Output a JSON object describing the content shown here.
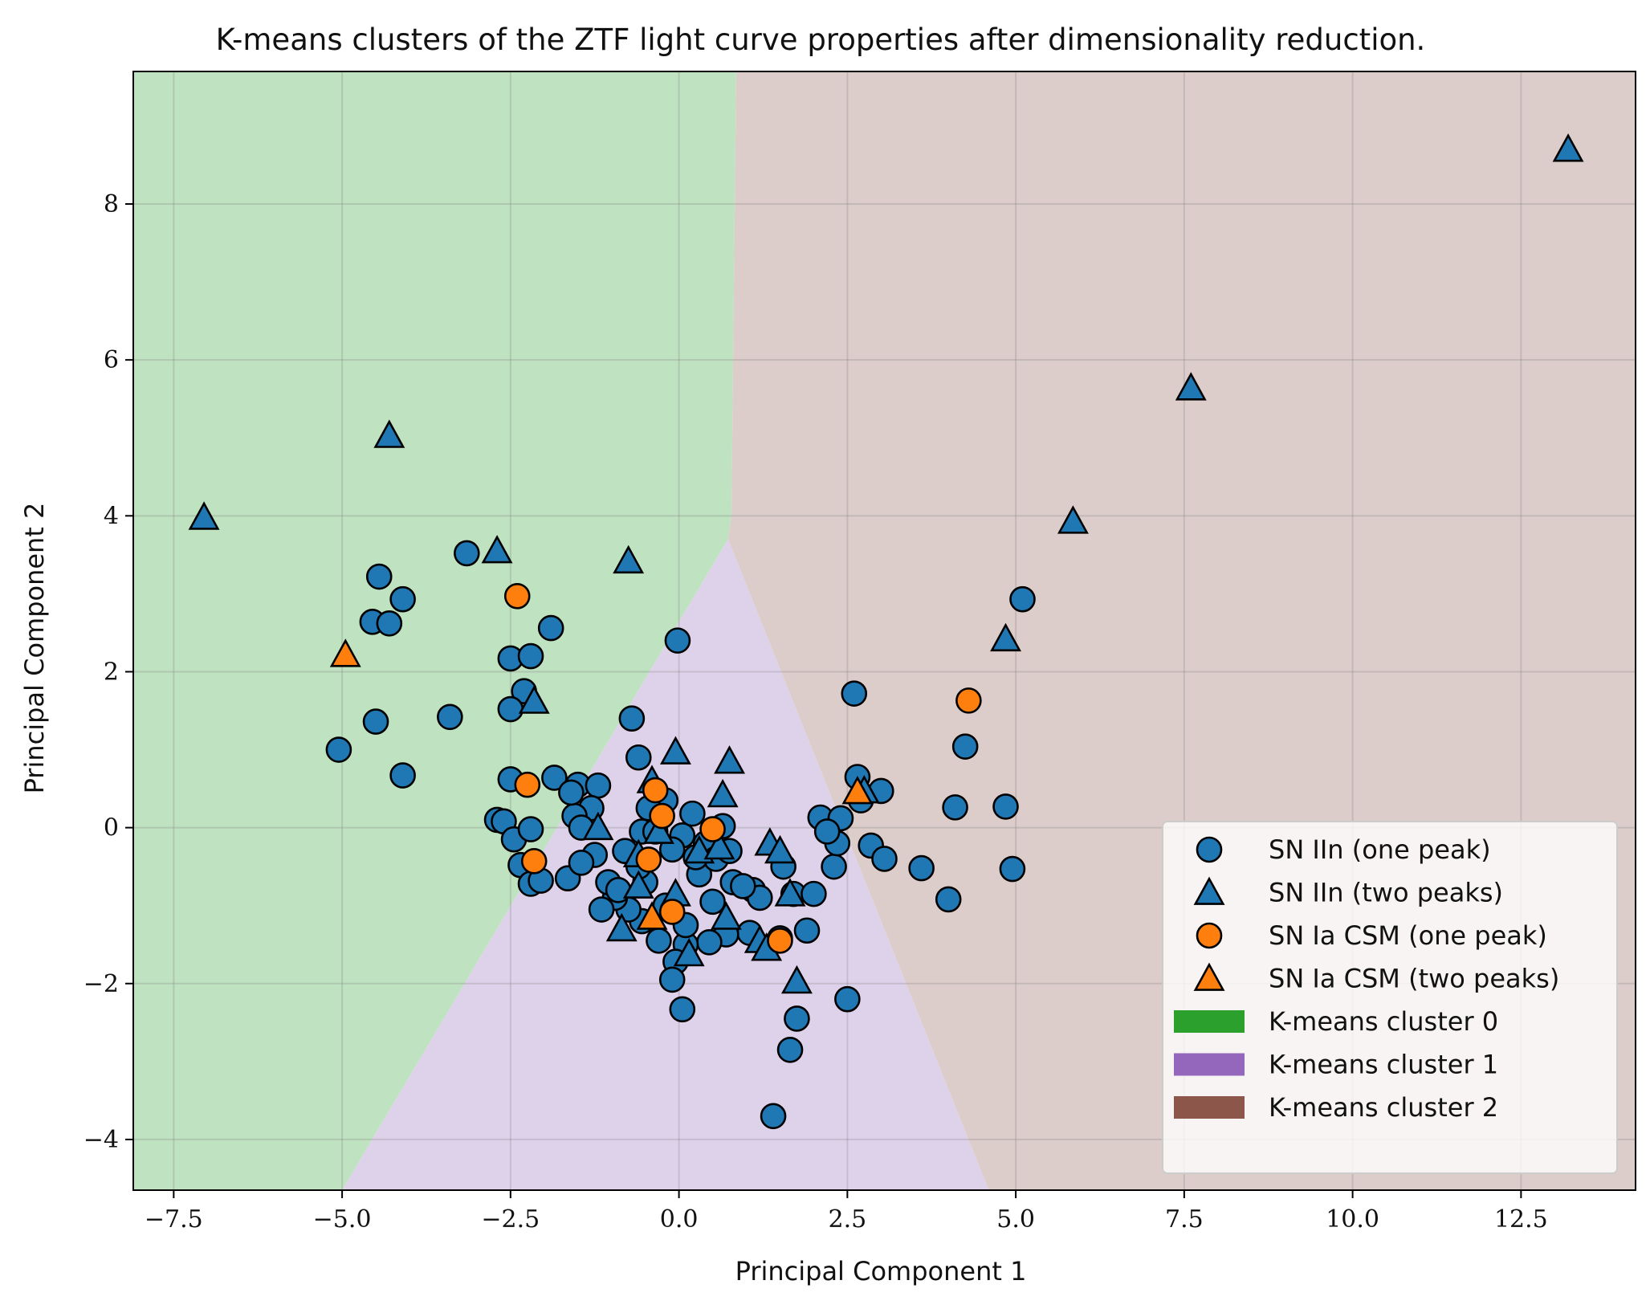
{
  "chart_data": {
    "type": "scatter",
    "title": "K-means clusters of the ZTF light curve properties after dimensionality reduction.",
    "xlabel": "Principal Component 1",
    "ylabel": "Principal Component 2",
    "xlim": [
      -8.1,
      14.2
    ],
    "ylim": [
      -4.65,
      9.7
    ],
    "xticks": [
      -7.5,
      -5.0,
      -2.5,
      0.0,
      2.5,
      5.0,
      7.5,
      10.0,
      12.5
    ],
    "xtick_labels": [
      "−7.5",
      "−5.0",
      "−2.5",
      "0.0",
      "2.5",
      "5.0",
      "7.5",
      "10.0",
      "12.5"
    ],
    "yticks": [
      -4,
      -2,
      0,
      2,
      4,
      6,
      8
    ],
    "ytick_labels": [
      "−4",
      "−2",
      "0",
      "2",
      "4",
      "6",
      "8"
    ],
    "grid": true,
    "legend_position": "bottom-right",
    "regions": [
      {
        "name": "K-means cluster 0",
        "color": "#2ca02c",
        "fill_color": "#bfe2c0",
        "polygon": [
          [
            -8.1,
            9.7
          ],
          [
            0.85,
            9.7
          ],
          [
            0.78,
            4.0
          ],
          [
            0.73,
            3.7
          ],
          [
            -5.0,
            -4.65
          ],
          [
            -8.1,
            -4.65
          ]
        ]
      },
      {
        "name": "K-means cluster 1",
        "color": "#9467bd",
        "fill_color": "#ded2ea",
        "polygon": [
          [
            0.73,
            3.7
          ],
          [
            -5.0,
            -4.65
          ],
          [
            4.6,
            -4.65
          ]
        ]
      },
      {
        "name": "K-means cluster 2",
        "color": "#8c564b",
        "fill_color": "#dccdca",
        "polygon": [
          [
            0.85,
            9.7
          ],
          [
            14.2,
            9.7
          ],
          [
            14.2,
            -4.65
          ],
          [
            4.6,
            -4.65
          ],
          [
            0.73,
            3.7
          ],
          [
            0.78,
            4.0
          ]
        ]
      }
    ],
    "series": [
      {
        "name": "SN IIn (one peak)",
        "marker": "circle",
        "color": "#1f77b4",
        "x": [
          -3.15,
          -4.45,
          -4.1,
          -4.55,
          -4.3,
          -2.5,
          -2.2,
          -1.9,
          -2.3,
          -2.5,
          -3.4,
          -4.5,
          -5.05,
          -4.1,
          -0.02,
          -0.7,
          -0.6,
          2.6,
          2.65,
          2.7,
          3.0,
          4.25,
          4.1,
          4.85,
          4.95,
          5.1,
          2.85,
          3.05,
          3.6,
          4.0,
          -1.85,
          -2.5,
          -1.5,
          -1.2,
          -1.3,
          -2.7,
          -2.6,
          -2.45,
          -2.2,
          -1.65,
          -0.8,
          -0.55,
          -0.35,
          -0.2,
          0.05,
          0.2,
          0.4,
          0.65,
          0.8,
          1.1,
          1.2,
          1.55,
          1.7,
          2.0,
          2.1,
          2.3,
          2.35,
          2.4,
          2.2,
          1.9,
          1.5,
          1.05,
          0.7,
          0.45,
          0.1,
          -0.3,
          -0.55,
          -0.75,
          -0.95,
          -1.05,
          -1.15,
          -1.25,
          -1.45,
          -1.55,
          -0.9,
          -0.5,
          -0.2,
          0.1,
          0.3,
          0.55,
          0.75,
          0.95,
          -0.05,
          -0.1,
          0.05,
          -0.45,
          -0.35,
          2.5,
          1.75,
          1.65,
          1.4,
          -2.35,
          -2.2,
          -2.05,
          -1.6,
          -1.45,
          -0.6,
          -0.1,
          0.25,
          0.5
        ],
        "y": [
          3.52,
          3.22,
          2.93,
          2.64,
          2.62,
          2.17,
          2.2,
          2.56,
          1.75,
          1.52,
          1.42,
          1.36,
          1.0,
          0.67,
          2.4,
          1.4,
          0.9,
          1.72,
          0.65,
          0.35,
          0.47,
          1.04,
          0.26,
          0.27,
          -0.53,
          2.93,
          -0.23,
          -0.4,
          -0.52,
          -0.92,
          0.64,
          0.62,
          0.55,
          0.54,
          0.25,
          0.1,
          0.08,
          -0.15,
          -0.02,
          -0.65,
          -0.3,
          -0.05,
          0.2,
          0.35,
          -0.1,
          0.18,
          -0.2,
          0.02,
          -0.7,
          -0.8,
          -0.9,
          -0.5,
          -0.85,
          -0.85,
          0.13,
          -0.5,
          -0.2,
          0.12,
          -0.05,
          -1.32,
          -1.42,
          -1.35,
          -1.37,
          -1.47,
          -1.5,
          -1.45,
          -1.2,
          -1.05,
          -0.9,
          -0.7,
          -1.05,
          -0.35,
          -0.45,
          0.15,
          -0.8,
          -0.7,
          -1.0,
          -1.25,
          -0.6,
          -0.4,
          -0.3,
          -0.75,
          -1.72,
          -1.95,
          -2.33,
          0.25,
          -0.05,
          -2.2,
          -2.45,
          -2.85,
          -3.7,
          -0.48,
          -0.72,
          -0.68,
          0.45,
          0.0,
          -0.5,
          -0.28,
          -0.38,
          -0.95
        ]
      },
      {
        "name": "SN IIn (two peaks)",
        "marker": "triangle",
        "color": "#1f77b4",
        "x": [
          13.2,
          7.6,
          5.85,
          4.85,
          -4.3,
          -7.05,
          -2.7,
          -0.75,
          -2.15,
          -0.05,
          0.75,
          0.65,
          1.35,
          1.5,
          1.75,
          2.75,
          -0.6,
          -0.3,
          -0.05,
          0.3,
          0.6,
          0.7,
          1.2,
          1.3,
          1.65,
          -0.4,
          -0.6,
          -0.85,
          0.15,
          -1.2
        ],
        "y": [
          8.7,
          5.64,
          3.93,
          2.42,
          5.03,
          3.98,
          3.55,
          3.42,
          1.62,
          0.97,
          0.85,
          0.42,
          -0.2,
          -0.3,
          -1.97,
          0.47,
          -0.35,
          -0.05,
          -0.85,
          -0.3,
          -0.25,
          -1.15,
          -1.45,
          -1.55,
          -0.85,
          0.6,
          -0.75,
          -1.3,
          -1.62,
          0.0
        ]
      },
      {
        "name": "SN Ia CSM (one peak)",
        "marker": "circle",
        "color": "#ff7f0e",
        "x": [
          -2.4,
          -2.25,
          -2.15,
          -0.35,
          -0.25,
          0.5,
          -0.45,
          -0.1,
          4.3,
          1.5
        ],
        "y": [
          2.97,
          0.55,
          -0.43,
          0.48,
          0.15,
          -0.02,
          -0.41,
          -1.08,
          1.63,
          -1.45
        ]
      },
      {
        "name": "SN Ia CSM (two peaks)",
        "marker": "triangle",
        "color": "#ff7f0e",
        "x": [
          -4.95,
          2.65,
          -0.4
        ],
        "y": [
          2.22,
          0.46,
          -1.15
        ]
      }
    ]
  }
}
